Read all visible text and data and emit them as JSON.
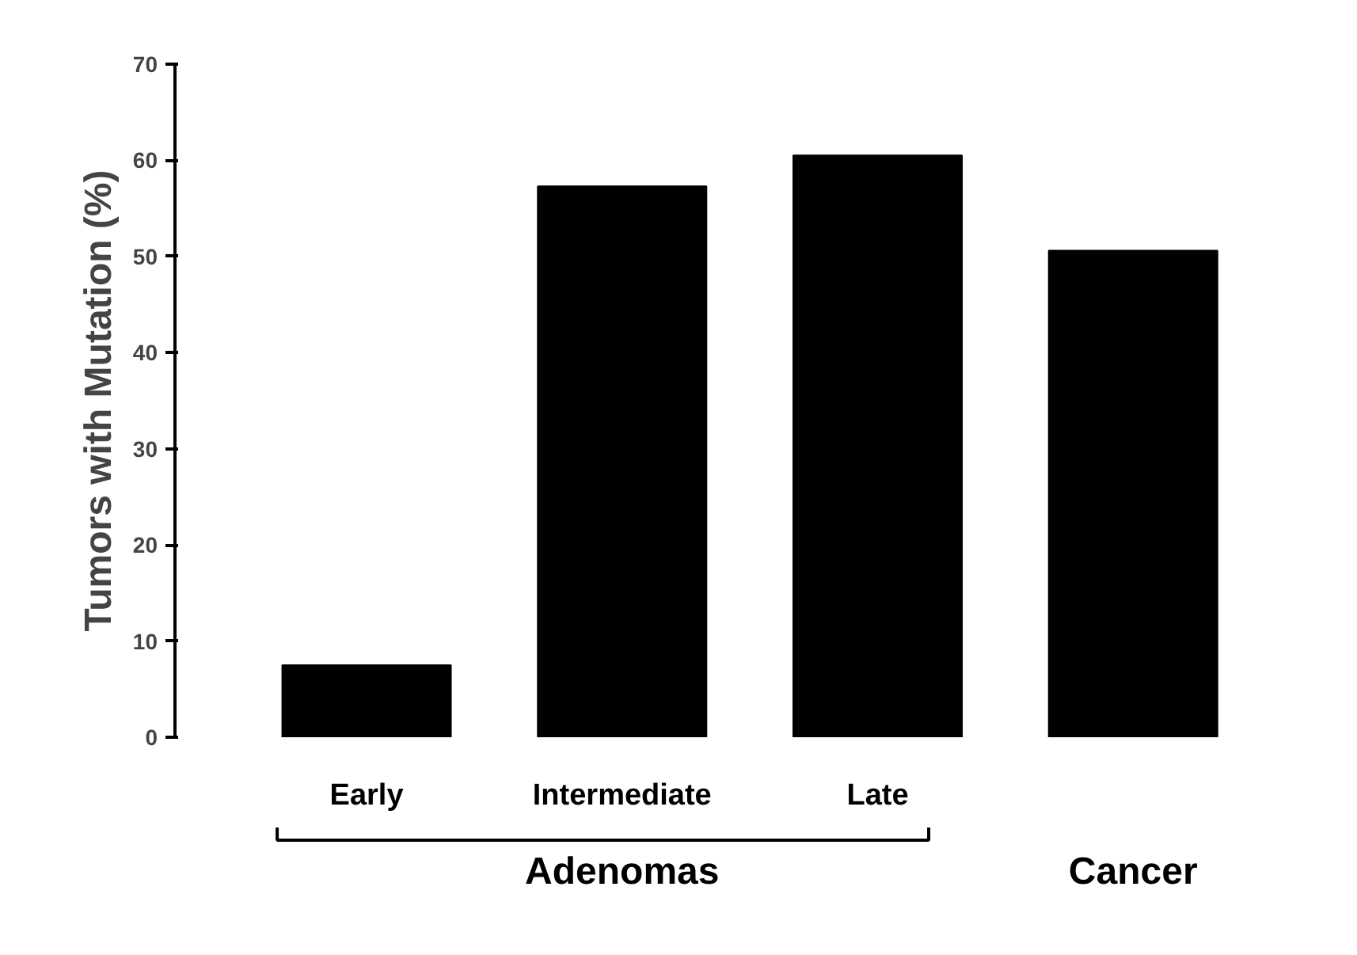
{
  "chart_data": {
    "type": "bar",
    "ylabel": "Tumors with Mutation (%)",
    "categories": [
      "Early",
      "Intermediate",
      "Late",
      null
    ],
    "values": [
      7.5,
      57.3,
      60.5,
      50.6
    ],
    "color": "#000000",
    "ylim": [
      0,
      70
    ],
    "yticks": [
      0,
      10,
      20,
      30,
      40,
      50,
      60,
      70
    ],
    "grid": false,
    "annotations": [
      "Adenomas",
      "Cancer"
    ]
  }
}
